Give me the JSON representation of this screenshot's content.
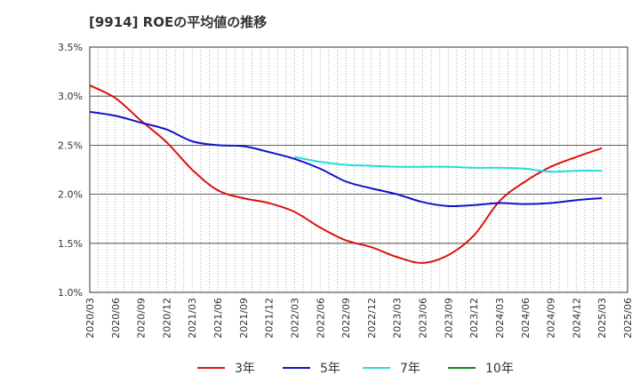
{
  "chart_data": {
    "type": "line",
    "title": "[9914]  ROEの平均値の推移",
    "xlabel": "",
    "ylabel": "",
    "x": [
      "2020/03",
      "2020/06",
      "2020/09",
      "2020/12",
      "2021/03",
      "2021/06",
      "2021/09",
      "2021/12",
      "2022/03",
      "2022/06",
      "2022/09",
      "2022/12",
      "2023/03",
      "2023/06",
      "2023/09",
      "2023/12",
      "2024/03",
      "2024/06",
      "2024/09",
      "2024/12",
      "2025/03",
      "2025/06"
    ],
    "ylim": [
      1.0,
      3.5
    ],
    "yticks": [
      "1.0%",
      "1.5%",
      "2.0%",
      "2.5%",
      "3.0%",
      "3.5%"
    ],
    "grid": true,
    "legend_position": "bottom",
    "series": [
      {
        "name": "3年",
        "color": "#dd1111",
        "values": [
          3.11,
          2.98,
          2.75,
          2.53,
          2.25,
          2.04,
          1.96,
          1.91,
          1.82,
          1.66,
          1.53,
          1.46,
          1.36,
          1.3,
          1.38,
          1.58,
          1.93,
          2.13,
          2.28,
          2.38,
          2.47,
          null
        ]
      },
      {
        "name": "5年",
        "color": "#1111cc",
        "values": [
          2.84,
          2.8,
          2.73,
          2.66,
          2.54,
          2.5,
          2.49,
          2.43,
          2.36,
          2.26,
          2.13,
          2.06,
          2.0,
          1.92,
          1.88,
          1.89,
          1.91,
          1.9,
          1.91,
          1.94,
          1.96,
          null
        ]
      },
      {
        "name": "7年",
        "color": "#22dddd",
        "values": [
          null,
          null,
          null,
          null,
          null,
          null,
          null,
          null,
          2.38,
          2.33,
          2.3,
          2.29,
          2.28,
          2.28,
          2.28,
          2.27,
          2.27,
          2.26,
          2.23,
          2.24,
          2.24,
          null
        ]
      },
      {
        "name": "10年",
        "color": "#118811",
        "values": [
          null,
          null,
          null,
          null,
          null,
          null,
          null,
          null,
          null,
          null,
          null,
          null,
          null,
          null,
          null,
          null,
          null,
          null,
          null,
          null,
          null,
          null
        ]
      }
    ]
  }
}
